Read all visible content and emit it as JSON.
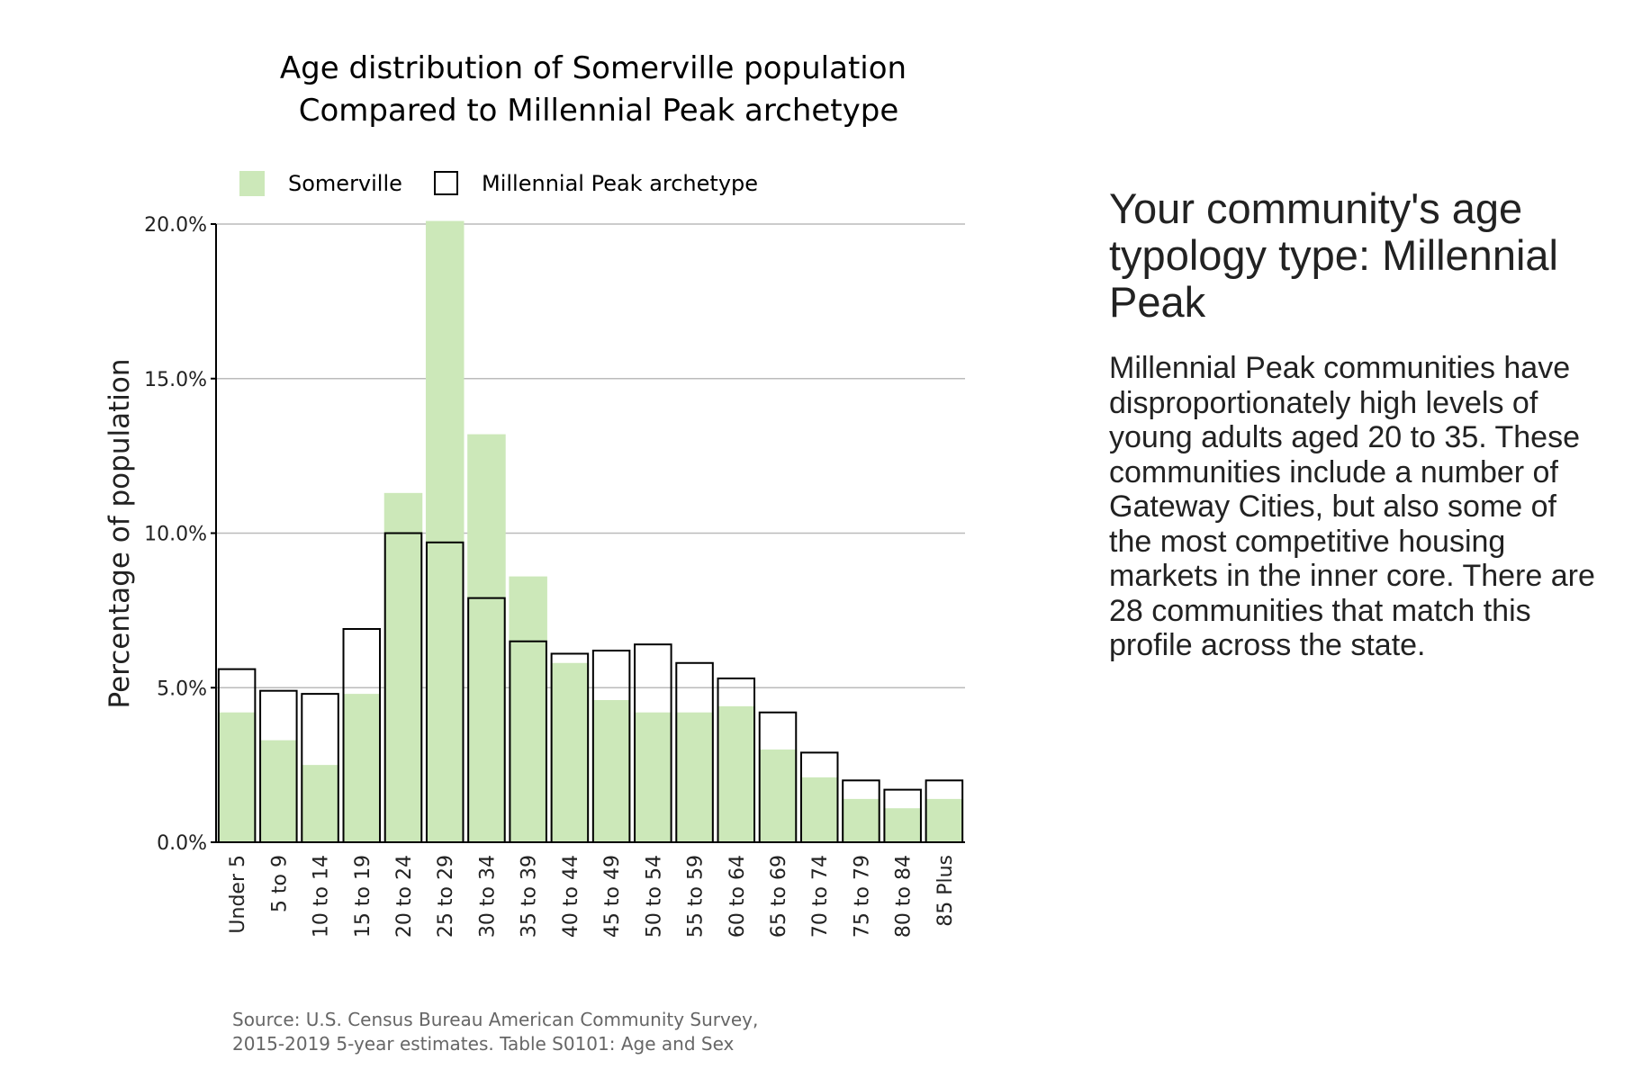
{
  "chart_data": {
    "type": "bar",
    "title": "Age distribution of Somerville population",
    "subtitle": "Compared to Millennial Peak archetype",
    "xlabel": "",
    "ylabel": "Percentage of population",
    "ylim": [
      0,
      20
    ],
    "yticks": [
      "0.0%",
      "5.0%",
      "10.0%",
      "15.0%",
      "20.0%"
    ],
    "grid": true,
    "legend_position": "top-left",
    "categories": [
      "Under 5",
      "5 to 9",
      "10 to 14",
      "15 to 19",
      "20 to 24",
      "25 to 29",
      "30 to 34",
      "35 to 39",
      "40 to 44",
      "45 to 49",
      "50 to 54",
      "55 to 59",
      "60 to 64",
      "65 to 69",
      "70 to 74",
      "75 to 79",
      "80 to 84",
      "85 Plus"
    ],
    "series": [
      {
        "name": "Somerville",
        "color": "#cce8b9",
        "style": "filled",
        "values": [
          4.2,
          3.3,
          2.5,
          4.8,
          11.3,
          20.1,
          13.2,
          8.6,
          5.8,
          4.6,
          4.2,
          4.2,
          4.4,
          3.0,
          2.1,
          1.4,
          1.1,
          1.4
        ]
      },
      {
        "name": "Millennial Peak archetype",
        "color": "#000000",
        "style": "outline",
        "values": [
          5.6,
          4.9,
          4.8,
          6.9,
          10.0,
          9.7,
          7.9,
          6.5,
          6.1,
          6.2,
          6.4,
          5.8,
          5.3,
          4.2,
          2.9,
          2.0,
          1.7,
          2.0
        ]
      }
    ],
    "source": [
      "Source: U.S. Census Bureau American Community Survey,",
      "2015-2019 5-year estimates. Table S0101: Age and Sex"
    ]
  },
  "side_panel": {
    "heading": "Your community's age typology type: Millennial Peak",
    "description": "Millennial Peak communities have disproportionately high levels of young adults aged 20 to 35. These communities include a number of Gateway Cities, but also some of the most competitive housing markets in the inner core. There are 28 communities that match this profile across the state."
  }
}
